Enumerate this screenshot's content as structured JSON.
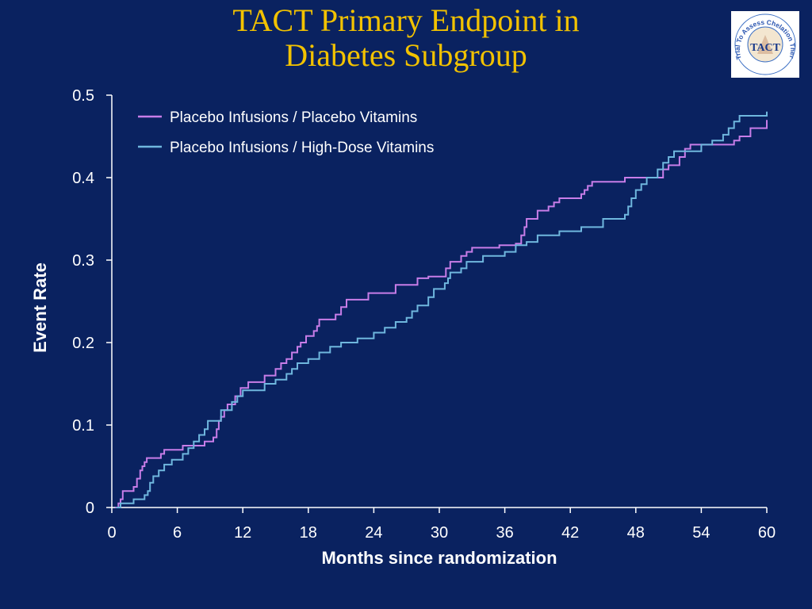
{
  "slide": {
    "title_line1": "TACT Primary Endpoint in",
    "title_line2": "Diabetes Subgroup",
    "logo": {
      "text": "TACT",
      "ring_text": "Trial To Assess Chelation Therapy"
    }
  },
  "colors": {
    "background": "#0a2260",
    "title": "#f2c200",
    "placebo_vitamins": "#c87de8",
    "high_dose_vitamins": "#6fb7de",
    "axis": "#ffffff"
  },
  "chart_data": {
    "type": "line",
    "step": true,
    "title": "TACT Primary Endpoint in Diabetes Subgroup",
    "xlabel": "Months since randomization",
    "ylabel": "Event Rate",
    "xlim": [
      0,
      60
    ],
    "ylim": [
      0,
      0.5
    ],
    "xticks": [
      0,
      6,
      12,
      18,
      24,
      30,
      36,
      42,
      48,
      54,
      60
    ],
    "yticks": [
      0,
      0.1,
      0.2,
      0.3,
      0.4,
      0.5
    ],
    "xtick_labels": [
      "0",
      "6",
      "12",
      "18",
      "24",
      "30",
      "36",
      "42",
      "48",
      "54",
      "60"
    ],
    "ytick_labels": [
      "0",
      "0.1",
      "0.2",
      "0.3",
      "0.4",
      "0.5"
    ],
    "grid": false,
    "legend_position": "top-left",
    "series": [
      {
        "name": "Placebo Infusions / Placebo Vitamins",
        "color": "#c87de8",
        "x": [
          0.3,
          0.6,
          0.8,
          1.0,
          2.0,
          2.3,
          2.6,
          2.8,
          3.0,
          3.2,
          4.5,
          4.8,
          6.5,
          7.5,
          8.5,
          9.3,
          9.6,
          9.8,
          10.0,
          10.3,
          10.6,
          11.3,
          11.8,
          12.5,
          14.0,
          15.0,
          15.5,
          16.0,
          16.5,
          17.0,
          17.3,
          17.8,
          18.5,
          18.8,
          19.0,
          20.5,
          21.0,
          21.5,
          23.5,
          26.0,
          28.0,
          29.0,
          30.2,
          30.6,
          31.0,
          32.0,
          32.5,
          33.0,
          35.5,
          37.0,
          37.5,
          37.8,
          38.0,
          39.0,
          40.0,
          40.5,
          41.0,
          43.0,
          43.3,
          43.6,
          44.0,
          47.0,
          50.5,
          51.0,
          52.0,
          52.5,
          53.0,
          57.0,
          57.5,
          58.5,
          60.0
        ],
        "y": [
          0.0,
          0.005,
          0.01,
          0.02,
          0.025,
          0.035,
          0.045,
          0.05,
          0.055,
          0.06,
          0.065,
          0.07,
          0.075,
          0.075,
          0.08,
          0.085,
          0.095,
          0.105,
          0.11,
          0.118,
          0.125,
          0.135,
          0.145,
          0.152,
          0.16,
          0.168,
          0.175,
          0.18,
          0.188,
          0.195,
          0.2,
          0.208,
          0.214,
          0.22,
          0.228,
          0.234,
          0.243,
          0.252,
          0.26,
          0.27,
          0.278,
          0.28,
          0.28,
          0.29,
          0.298,
          0.305,
          0.31,
          0.315,
          0.318,
          0.32,
          0.33,
          0.34,
          0.35,
          0.36,
          0.365,
          0.37,
          0.375,
          0.38,
          0.385,
          0.39,
          0.395,
          0.4,
          0.41,
          0.415,
          0.425,
          0.435,
          0.44,
          0.445,
          0.45,
          0.46,
          0.47
        ]
      },
      {
        "name": "Placebo Infusions / High-Dose Vitamins",
        "color": "#6fb7de",
        "x": [
          0.4,
          0.8,
          2.0,
          3.0,
          3.3,
          3.5,
          3.8,
          4.3,
          4.8,
          5.5,
          6.5,
          7.0,
          7.5,
          8.0,
          8.5,
          8.8,
          10.0,
          11.0,
          11.5,
          12.0,
          14.0,
          15.0,
          16.0,
          16.5,
          17.0,
          18.0,
          19.0,
          20.0,
          21.0,
          22.5,
          24.0,
          25.0,
          26.0,
          27.0,
          27.5,
          28.0,
          29.0,
          29.5,
          30.5,
          30.8,
          31.0,
          32.0,
          32.5,
          34.0,
          36.0,
          37.0,
          38.0,
          39.0,
          41.0,
          43.0,
          45.0,
          47.0,
          47.3,
          47.6,
          48.0,
          48.5,
          49.0,
          50.0,
          50.5,
          51.0,
          51.5,
          54.0,
          55.0,
          56.0,
          56.5,
          57.0,
          57.5,
          60.0
        ],
        "y": [
          0.0,
          0.005,
          0.01,
          0.015,
          0.02,
          0.03,
          0.038,
          0.045,
          0.052,
          0.058,
          0.065,
          0.072,
          0.08,
          0.088,
          0.095,
          0.105,
          0.118,
          0.128,
          0.135,
          0.142,
          0.15,
          0.155,
          0.162,
          0.168,
          0.175,
          0.18,
          0.188,
          0.195,
          0.2,
          0.205,
          0.212,
          0.218,
          0.225,
          0.23,
          0.238,
          0.245,
          0.255,
          0.265,
          0.272,
          0.278,
          0.285,
          0.29,
          0.298,
          0.305,
          0.31,
          0.318,
          0.322,
          0.33,
          0.335,
          0.34,
          0.35,
          0.355,
          0.365,
          0.375,
          0.385,
          0.392,
          0.4,
          0.41,
          0.418,
          0.425,
          0.432,
          0.44,
          0.445,
          0.452,
          0.46,
          0.468,
          0.475,
          0.48
        ]
      }
    ]
  }
}
